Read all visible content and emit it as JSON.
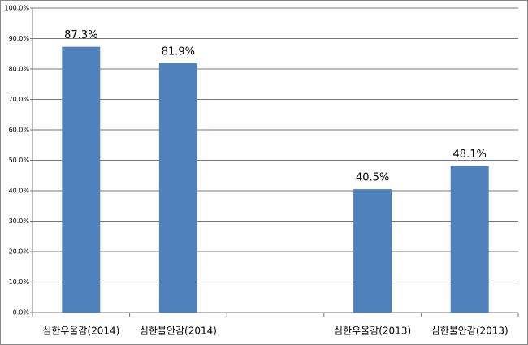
{
  "chart_data": {
    "type": "bar",
    "categories": [
      "심한우울감(2014)",
      "심한불안감(2014)",
      null,
      "심한우울감(2013)",
      "심한불안감(2013)"
    ],
    "values": [
      87.3,
      81.9,
      null,
      40.5,
      48.1
    ],
    "value_labels": [
      "87.3%",
      "81.9%",
      null,
      "40.5%",
      "48.1%"
    ],
    "color": "#4f81bd",
    "ylim": [
      0,
      100
    ],
    "yticks": [
      {
        "value": 0,
        "label": "0.0%"
      },
      {
        "value": 10,
        "label": "10.0%"
      },
      {
        "value": 20,
        "label": "20.0%"
      },
      {
        "value": 30,
        "label": "30.0%"
      },
      {
        "value": 40,
        "label": "40.0%"
      },
      {
        "value": 50,
        "label": "50.0%"
      },
      {
        "value": 60,
        "label": "60.0%"
      },
      {
        "value": 70,
        "label": "70.0%"
      },
      {
        "value": 80,
        "label": "80.0%"
      },
      {
        "value": 90,
        "label": "90.0%"
      },
      {
        "value": 100,
        "label": "100.0%"
      }
    ],
    "grid": true
  }
}
